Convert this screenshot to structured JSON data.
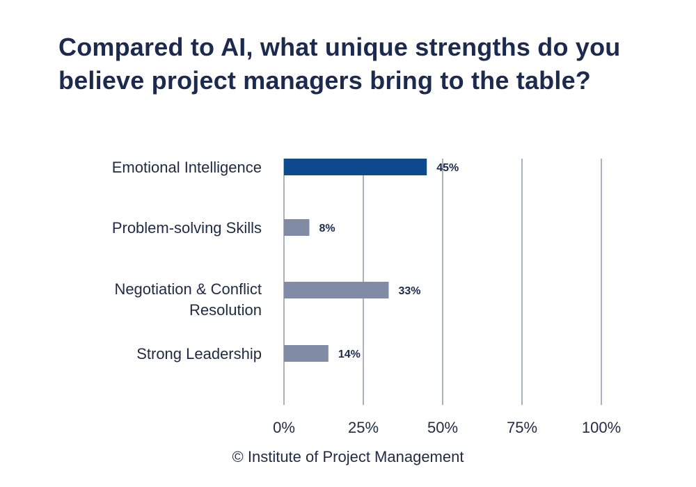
{
  "chart_data": {
    "type": "bar",
    "orientation": "horizontal",
    "title": "Compared to AI, what unique strengths do you believe project managers bring to the table?",
    "categories": [
      "Emotional Intelligence",
      "Problem-solving Skills",
      "Negotiation & Conflict Resolution",
      "Strong Leadership"
    ],
    "category_lines": [
      [
        "Emotional Intelligence"
      ],
      [
        "Problem-solving Skills"
      ],
      [
        "Negotiation & Conflict",
        "Resolution"
      ],
      [
        "Strong Leadership"
      ]
    ],
    "values": [
      45,
      8,
      33,
      14
    ],
    "value_labels": [
      "45%",
      "8%",
      "33%",
      "14%"
    ],
    "xlim": [
      0,
      100
    ],
    "xticks": [
      0,
      25,
      50,
      75,
      100
    ],
    "xtick_labels": [
      "0%",
      "25%",
      "50%",
      "75%",
      "100%"
    ],
    "grid": true,
    "colors": {
      "highlight": "#0f4a8e",
      "bar": "#818ba6",
      "grid": "#8d95a8",
      "title": "#1c2a4d"
    }
  },
  "footer": {
    "source": "© Institute of Project Management"
  }
}
